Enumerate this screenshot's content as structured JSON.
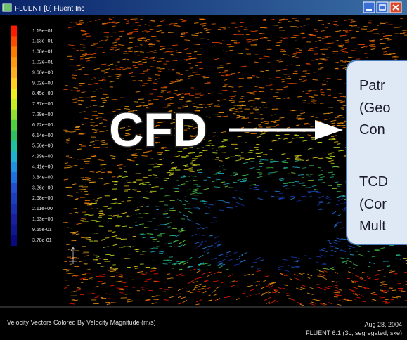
{
  "window": {
    "title": "FLUENT [0] Fluent Inc"
  },
  "colorbar": {
    "labels": [
      "1.19e+01",
      "1.13e+01",
      "1.08e+01",
      "1.02e+01",
      "9.60e+00",
      "9.02e+00",
      "8.45e+00",
      "7.87e+00",
      "7.29e+00",
      "6.72e+00",
      "6.14e+00",
      "5.56e+00",
      "4.99e+00",
      "4.41e+00",
      "3.84e+00",
      "3.26e+00",
      "2.68e+00",
      "2.11e+00",
      "1.53e+00",
      "9.55e-01",
      "3.78e-01"
    ]
  },
  "overlay": {
    "label": "CFD"
  },
  "callout": {
    "lines": [
      "Patr",
      "(Geo",
      "Con",
      "TCD",
      "(Cor",
      "Mult"
    ]
  },
  "footer": {
    "caption": "Velocity Vectors Colored By Velocity Magnitude (m/s)",
    "date": "Aug 28, 2004",
    "version": "FLUENT 6.1 (3c, segregated, ske)"
  }
}
